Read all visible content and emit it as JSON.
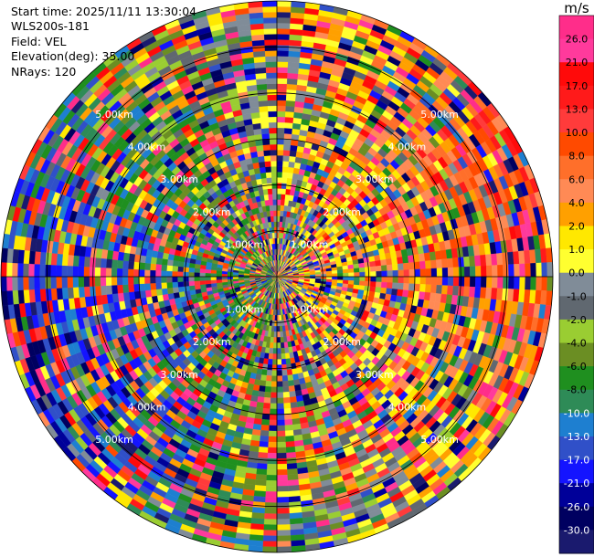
{
  "info": {
    "start_time": "Start time: 2025/11/11 13:30:04",
    "site": "WLS200s-181",
    "field": "Field: VEL",
    "elevation": "Elevation(deg): 35.00",
    "nrays": "NRays: 120"
  },
  "chart_data": {
    "type": "heatmap",
    "projection": "polar-ppi",
    "rays": 120,
    "elevation_deg": 35.0,
    "range_km_max": 6.0,
    "range_rings_km": [
      1,
      2,
      3,
      4,
      5
    ],
    "range_ring_labels": [
      "1.00km",
      "2.00km",
      "3.00km",
      "4.00km",
      "5.00km"
    ],
    "unit": "m/s",
    "colorbar_levels": [
      "26.0",
      "21.0",
      "17.0",
      "13.0",
      "10.0",
      "8.0",
      "6.0",
      "4.0",
      "2.0",
      "1.0",
      "0.0",
      "-1.0",
      "-2.0",
      "-4.0",
      "-6.0",
      "-8.0",
      "-10.0",
      "-13.0",
      "-17.0",
      "-21.0",
      "-26.0",
      "-30.0"
    ],
    "colorbar_colors": [
      "#ff2d8a",
      "#ff3a9c",
      "#ff0a0a",
      "#ff1a1a",
      "#ff3b3b",
      "#ff4a00",
      "#ff6f2a",
      "#ff8a55",
      "#ffa000",
      "#ffe800",
      "#ffff30",
      "#808c98",
      "#606870",
      "#9acd32",
      "#6b8e23",
      "#1f8f1f",
      "#2e8b57",
      "#1e7fd0",
      "#3050c8",
      "#1414ff",
      "#000099",
      "#000060",
      "#1a1a6e"
    ]
  }
}
